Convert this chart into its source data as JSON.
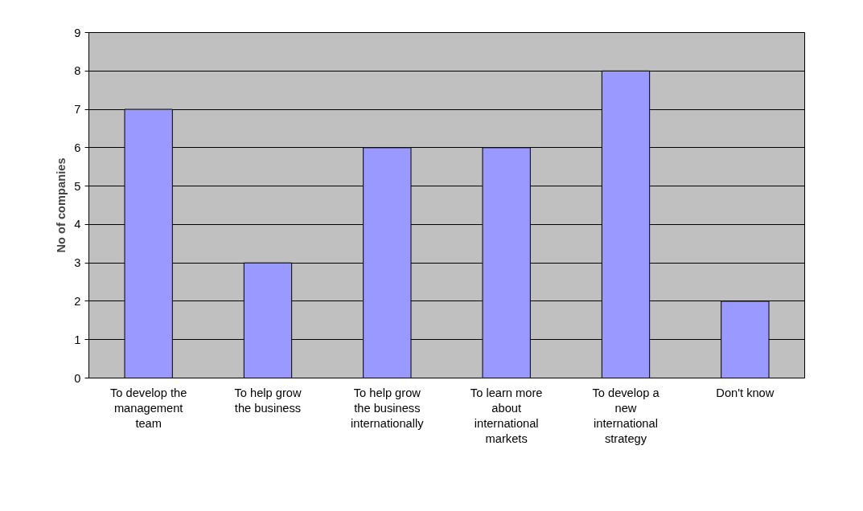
{
  "chart_data": {
    "type": "bar",
    "ylabel": "No of companies",
    "categories": [
      "To develop the management team",
      "To help grow the business",
      "To help grow the business internationally",
      "To learn more about international markets",
      "To develop a new international strategy",
      "Don't know"
    ],
    "values": [
      7,
      3,
      6,
      6,
      8,
      2
    ],
    "color": "#9999ff",
    "ylim": [
      0,
      9
    ],
    "yticks": [
      0,
      1,
      2,
      3,
      4,
      5,
      6,
      7,
      8,
      9
    ],
    "grid": "y"
  }
}
